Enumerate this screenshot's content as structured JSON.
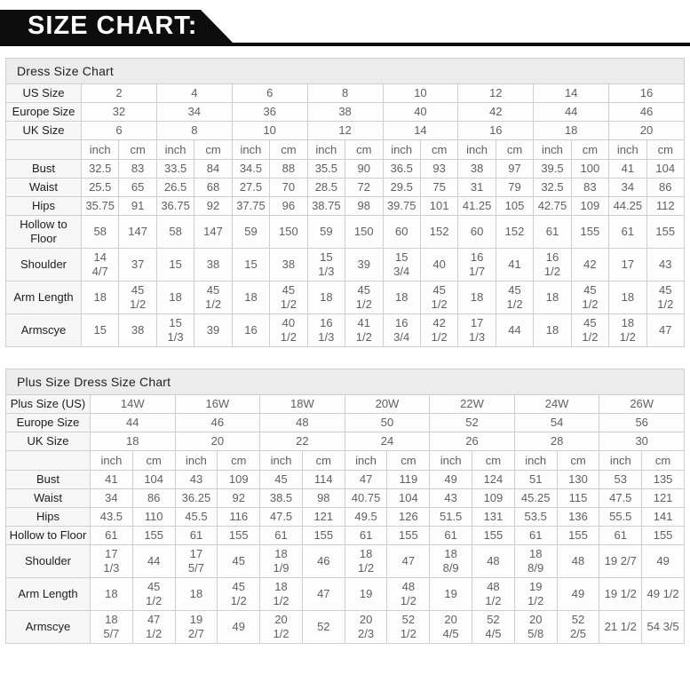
{
  "banner": {
    "title": "SIZE CHART:"
  },
  "colors": {
    "banner_bg": "#0d0d0d",
    "banner_text": "#ffffff",
    "table_title_bg": "#ececec",
    "label_column_bg": "#f6f6f6",
    "cell_bg": "#fdfdfd",
    "border": "#cfcfcf",
    "cell_text": "#606060",
    "label_text": "#1d1d1d"
  },
  "units": {
    "inch": "inch",
    "cm": "cm"
  },
  "tables": [
    {
      "title": "Dress Size Chart",
      "size_rows": [
        {
          "label": "US Size",
          "values": [
            "2",
            "4",
            "6",
            "8",
            "10",
            "12",
            "14",
            "16"
          ]
        },
        {
          "label": "Europe Size",
          "values": [
            "32",
            "34",
            "36",
            "38",
            "40",
            "42",
            "44",
            "46"
          ]
        },
        {
          "label": "UK Size",
          "values": [
            "6",
            "8",
            "10",
            "12",
            "14",
            "16",
            "18",
            "20"
          ]
        }
      ],
      "measure_rows": [
        {
          "label": "Bust",
          "values": [
            [
              "32.5",
              "83"
            ],
            [
              "33.5",
              "84"
            ],
            [
              "34.5",
              "88"
            ],
            [
              "35.5",
              "90"
            ],
            [
              "36.5",
              "93"
            ],
            [
              "38",
              "97"
            ],
            [
              "39.5",
              "100"
            ],
            [
              "41",
              "104"
            ]
          ]
        },
        {
          "label": "Waist",
          "values": [
            [
              "25.5",
              "65"
            ],
            [
              "26.5",
              "68"
            ],
            [
              "27.5",
              "70"
            ],
            [
              "28.5",
              "72"
            ],
            [
              "29.5",
              "75"
            ],
            [
              "31",
              "79"
            ],
            [
              "32.5",
              "83"
            ],
            [
              "34",
              "86"
            ]
          ]
        },
        {
          "label": "Hips",
          "values": [
            [
              "35.75",
              "91"
            ],
            [
              "36.75",
              "92"
            ],
            [
              "37.75",
              "96"
            ],
            [
              "38.75",
              "98"
            ],
            [
              "39.75",
              "101"
            ],
            [
              "41.25",
              "105"
            ],
            [
              "42.75",
              "109"
            ],
            [
              "44.25",
              "112"
            ]
          ]
        },
        {
          "label": "Hollow to Floor",
          "values": [
            [
              "58",
              "147"
            ],
            [
              "58",
              "147"
            ],
            [
              "59",
              "150"
            ],
            [
              "59",
              "150"
            ],
            [
              "60",
              "152"
            ],
            [
              "60",
              "152"
            ],
            [
              "61",
              "155"
            ],
            [
              "61",
              "155"
            ]
          ]
        },
        {
          "label": "Shoulder",
          "values": [
            [
              "14\n4/7",
              "37"
            ],
            [
              "15",
              "38"
            ],
            [
              "15",
              "38"
            ],
            [
              "15\n1/3",
              "39"
            ],
            [
              "15\n3/4",
              "40"
            ],
            [
              "16\n1/7",
              "41"
            ],
            [
              "16\n1/2",
              "42"
            ],
            [
              "17",
              "43"
            ]
          ]
        },
        {
          "label": "Arm Length",
          "values": [
            [
              "18",
              "45\n1/2"
            ],
            [
              "18",
              "45\n1/2"
            ],
            [
              "18",
              "45\n1/2"
            ],
            [
              "18",
              "45\n1/2"
            ],
            [
              "18",
              "45\n1/2"
            ],
            [
              "18",
              "45\n1/2"
            ],
            [
              "18",
              "45\n1/2"
            ],
            [
              "18",
              "45\n1/2"
            ]
          ]
        },
        {
          "label": "Armscye",
          "values": [
            [
              "15",
              "38"
            ],
            [
              "15\n1/3",
              "39"
            ],
            [
              "16",
              "40\n1/2"
            ],
            [
              "16\n1/3",
              "41\n1/2"
            ],
            [
              "16\n3/4",
              "42\n1/2"
            ],
            [
              "17\n1/3",
              "44"
            ],
            [
              "18",
              "45\n1/2"
            ],
            [
              "18\n1/2",
              "47"
            ]
          ]
        }
      ]
    },
    {
      "title": "Plus Size Dress Size Chart",
      "size_rows": [
        {
          "label": "Plus Size (US)",
          "values": [
            "14W",
            "16W",
            "18W",
            "20W",
            "22W",
            "24W",
            "26W"
          ]
        },
        {
          "label": "Europe Size",
          "values": [
            "44",
            "46",
            "48",
            "50",
            "52",
            "54",
            "56"
          ]
        },
        {
          "label": "UK Size",
          "values": [
            "18",
            "20",
            "22",
            "24",
            "26",
            "28",
            "30"
          ]
        }
      ],
      "measure_rows": [
        {
          "label": "Bust",
          "values": [
            [
              "41",
              "104"
            ],
            [
              "43",
              "109"
            ],
            [
              "45",
              "114"
            ],
            [
              "47",
              "119"
            ],
            [
              "49",
              "124"
            ],
            [
              "51",
              "130"
            ],
            [
              "53",
              "135"
            ]
          ]
        },
        {
          "label": "Waist",
          "values": [
            [
              "34",
              "86"
            ],
            [
              "36.25",
              "92"
            ],
            [
              "38.5",
              "98"
            ],
            [
              "40.75",
              "104"
            ],
            [
              "43",
              "109"
            ],
            [
              "45.25",
              "115"
            ],
            [
              "47.5",
              "121"
            ]
          ]
        },
        {
          "label": "Hips",
          "values": [
            [
              "43.5",
              "110"
            ],
            [
              "45.5",
              "116"
            ],
            [
              "47.5",
              "121"
            ],
            [
              "49.5",
              "126"
            ],
            [
              "51.5",
              "131"
            ],
            [
              "53.5",
              "136"
            ],
            [
              "55.5",
              "141"
            ]
          ]
        },
        {
          "label": "Hollow to Floor",
          "values": [
            [
              "61",
              "155"
            ],
            [
              "61",
              "155"
            ],
            [
              "61",
              "155"
            ],
            [
              "61",
              "155"
            ],
            [
              "61",
              "155"
            ],
            [
              "61",
              "155"
            ],
            [
              "61",
              "155"
            ]
          ]
        },
        {
          "label": "Shoulder",
          "values": [
            [
              "17\n1/3",
              "44"
            ],
            [
              "17\n5/7",
              "45"
            ],
            [
              "18\n1/9",
              "46"
            ],
            [
              "18\n1/2",
              "47"
            ],
            [
              "18\n8/9",
              "48"
            ],
            [
              "18\n8/9",
              "48"
            ],
            [
              "19 2/7",
              "49"
            ]
          ]
        },
        {
          "label": "Arm Length",
          "values": [
            [
              "18",
              "45\n1/2"
            ],
            [
              "18",
              "45\n1/2"
            ],
            [
              "18\n1/2",
              "47"
            ],
            [
              "19",
              "48\n1/2"
            ],
            [
              "19",
              "48\n1/2"
            ],
            [
              "19\n1/2",
              "49"
            ],
            [
              "19 1/2",
              "49 1/2"
            ]
          ]
        },
        {
          "label": "Armscye",
          "values": [
            [
              "18\n5/7",
              "47\n1/2"
            ],
            [
              "19\n2/7",
              "49"
            ],
            [
              "20\n1/2",
              "52"
            ],
            [
              "20\n2/3",
              "52\n1/2"
            ],
            [
              "20\n4/5",
              "52\n4/5"
            ],
            [
              "20\n5/8",
              "52\n2/5"
            ],
            [
              "21 1/2",
              "54 3/5"
            ]
          ]
        }
      ]
    }
  ]
}
